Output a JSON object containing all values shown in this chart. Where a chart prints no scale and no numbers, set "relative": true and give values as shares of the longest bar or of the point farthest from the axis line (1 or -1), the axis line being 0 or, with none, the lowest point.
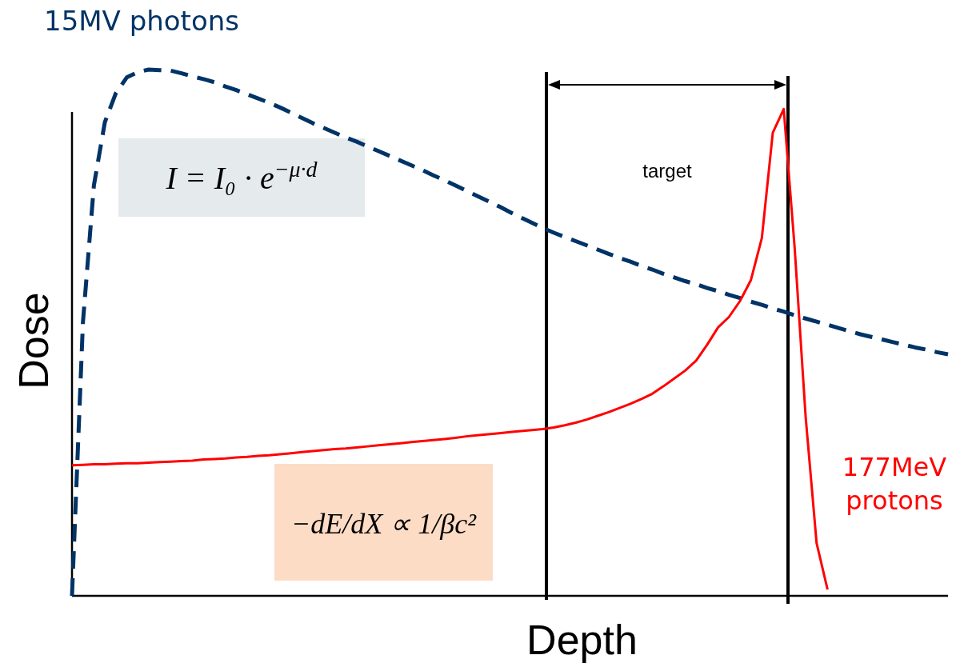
{
  "chart_data": {
    "type": "line",
    "relative": true,
    "xlabel": "Depth",
    "ylabel": "Dose",
    "categories": [
      null,
      null,
      null,
      null,
      null,
      null,
      null,
      null,
      null,
      null,
      null,
      null,
      null,
      null,
      null,
      null,
      null,
      null,
      null,
      null,
      null,
      null,
      null,
      null,
      null,
      null,
      null,
      null,
      null,
      null,
      null,
      null,
      null,
      null,
      null,
      null,
      null,
      null,
      null,
      null,
      null,
      null,
      null,
      null,
      null,
      null,
      null,
      null,
      null,
      null,
      null,
      null,
      null,
      null,
      null,
      null,
      null,
      null,
      null,
      null,
      null,
      null,
      null,
      null,
      null,
      null,
      null,
      null,
      null,
      null,
      null,
      null,
      null,
      null,
      null,
      null,
      null,
      null,
      null,
      null,
      null
    ],
    "series": [
      {
        "name": "15MV photons",
        "color": "#003366",
        "line_style": "dashed",
        "values": [
          0,
          0.52,
          0.78,
          0.9,
          0.955,
          0.985,
          0.995,
          1,
          0.999,
          0.998,
          0.993,
          0.987,
          0.982,
          0.976,
          0.968,
          0.961,
          0.953,
          0.945,
          0.937,
          0.928,
          0.918,
          0.908,
          0.898,
          0.889,
          0.88,
          0.871,
          0.863,
          0.854,
          0.845,
          0.836,
          0.827,
          0.818,
          0.809,
          0.799,
          0.79,
          0.78,
          0.77,
          0.76,
          0.75,
          0.74,
          0.729,
          0.719,
          0.709,
          0.699,
          0.69,
          0.682,
          0.674,
          0.666,
          0.658,
          0.65,
          0.642,
          0.635,
          0.627,
          0.62,
          0.612,
          0.605,
          0.598,
          0.592,
          0.585,
          0.579,
          0.572,
          0.566,
          0.559,
          0.553,
          0.546,
          0.54,
          0.533,
          0.527,
          0.521,
          0.515,
          0.509,
          0.503,
          0.497,
          0.492,
          0.487,
          0.482,
          0.477,
          0.472,
          0.468,
          0.463,
          0.459
        ]
      },
      {
        "name": "177MeV protons",
        "color": "#ff0000",
        "line_style": "solid",
        "values": [
          0.248,
          0.249,
          0.25,
          0.25,
          0.251,
          0.252,
          0.252,
          0.253,
          0.254,
          0.255,
          0.256,
          0.257,
          0.259,
          0.26,
          0.261,
          0.263,
          0.264,
          0.266,
          0.267,
          0.269,
          0.271,
          0.273,
          0.275,
          0.277,
          0.279,
          0.28,
          0.282,
          0.284,
          0.286,
          0.288,
          0.29,
          0.292,
          0.294,
          0.296,
          0.298,
          0.3,
          0.303,
          0.305,
          0.307,
          0.309,
          0.311,
          0.313,
          0.315,
          0.317,
          0.32,
          0.324,
          0.329,
          0.335,
          0.342,
          0.349,
          0.357,
          0.365,
          0.374,
          0.384,
          0.398,
          0.413,
          0.428,
          0.447,
          0.477,
          0.51,
          0.53,
          0.56,
          0.6,
          0.68,
          0.88,
          0.925,
          0.66,
          0.34,
          0.1,
          0.012,
          null,
          null,
          null,
          null,
          null,
          null,
          null,
          null,
          null,
          null,
          null
        ]
      }
    ],
    "annotations": [
      "target",
      "I = I₀ · e$^{−μ·d}$",
      "−dE/dX ∝ 1/βc²"
    ]
  }
}
